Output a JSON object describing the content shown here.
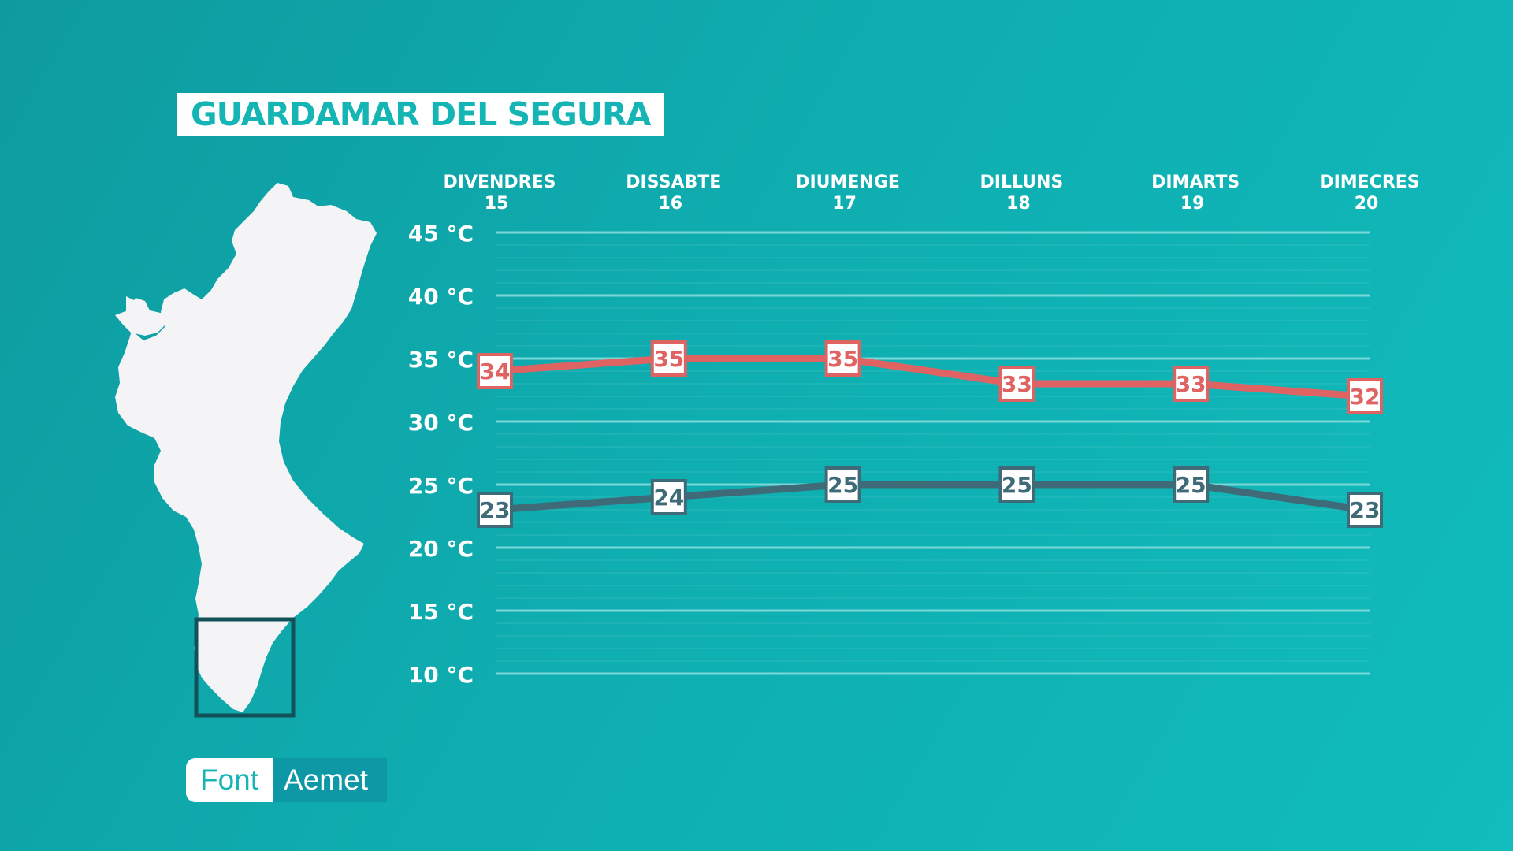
{
  "title": "GUARDAMAR DEL SEGURA",
  "source": {
    "label": "Font",
    "value": "Aemet"
  },
  "colors": {
    "max_line": "#e06363",
    "min_line": "#3f6a78",
    "grid": "#7fd9d9",
    "text": "#ffffff",
    "map_fill": "#f4f3f5",
    "highlight_box": "#12505a"
  },
  "chart_data": {
    "type": "line",
    "title": "GUARDAMAR DEL SEGURA",
    "categories": [
      {
        "day": "DIVENDRES",
        "date": "15"
      },
      {
        "day": "DISSABTE",
        "date": "16"
      },
      {
        "day": "DIUMENGE",
        "date": "17"
      },
      {
        "day": "DILLUNS",
        "date": "18"
      },
      {
        "day": "DIMARTS",
        "date": "19"
      },
      {
        "day": "DIMECRES",
        "date": "20"
      }
    ],
    "series": [
      {
        "key": "max",
        "values": [
          34,
          35,
          35,
          33,
          33,
          32
        ]
      },
      {
        "key": "min",
        "values": [
          23,
          24,
          25,
          25,
          25,
          23
        ]
      }
    ],
    "yticks": [
      "45 °C",
      "40 °C",
      "35 °C",
      "30 °C",
      "25 °C",
      "20 °C",
      "15 °C",
      "10 °C"
    ],
    "ytick_values": [
      45,
      40,
      35,
      30,
      25,
      20,
      15,
      10
    ],
    "ylim": [
      10,
      45
    ],
    "grid": true
  }
}
